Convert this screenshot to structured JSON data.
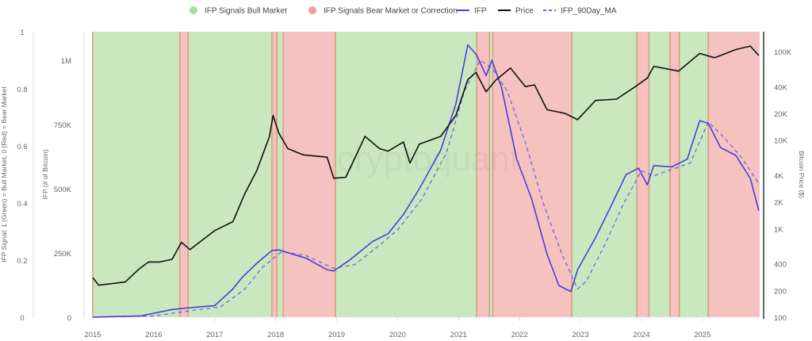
{
  "chart_data": {
    "type": "line",
    "legend": {
      "placement": "top",
      "items": [
        {
          "label": "IFP Signals Bull Market",
          "kind": "dot",
          "color": "#a8dca0"
        },
        {
          "label": "IFP Signals Bear Market or Correction",
          "kind": "dot",
          "color": "#f0a0a0"
        },
        {
          "label": "IFP",
          "kind": "line",
          "color": "#4a3fd8"
        },
        {
          "label": "Price",
          "kind": "line",
          "color": "#111111"
        },
        {
          "label": "IFP_90Day_MA",
          "kind": "dash",
          "color": "#6a6ad8"
        }
      ]
    },
    "watermark": "cryptoquant",
    "x_axis": {
      "type": "date",
      "range": [
        "2015-01-01",
        "2025-12-10"
      ],
      "ticks": [
        "2015",
        "2016",
        "2017",
        "2018",
        "2019",
        "2020",
        "2021",
        "2022",
        "2023",
        "2024",
        "2025"
      ]
    },
    "signal_axis": {
      "label": "IFP Signal: 1 (Green) = Bull Market, 0 (Red) = Bear Market",
      "range": [
        0,
        1
      ],
      "ticks": [
        "0",
        "0.2",
        "0.4",
        "0.6",
        "0.8",
        "1"
      ]
    },
    "ifp_axis": {
      "label": "IFP (# of Bitcoin)",
      "range": [
        0,
        1100000
      ],
      "ticks": [
        {
          "v": 0,
          "t": "0"
        },
        {
          "v": 250000,
          "t": "250K"
        },
        {
          "v": 500000,
          "t": "500K"
        },
        {
          "v": 750000,
          "t": "750K"
        },
        {
          "v": 1000000,
          "t": "1M"
        }
      ]
    },
    "price_axis": {
      "label": "Bitcoin Price ($)",
      "scale": "log",
      "range": [
        100,
        200000
      ],
      "ticks": [
        {
          "v": 100,
          "t": "100"
        },
        {
          "v": 200,
          "t": "200"
        },
        {
          "v": 400,
          "t": "400"
        },
        {
          "v": 1000,
          "t": "1K"
        },
        {
          "v": 2000,
          "t": "2K"
        },
        {
          "v": 4000,
          "t": "4K"
        },
        {
          "v": 10000,
          "t": "10K"
        },
        {
          "v": 20000,
          "t": "20K"
        },
        {
          "v": 40000,
          "t": "40K"
        },
        {
          "v": 100000,
          "t": "100K"
        }
      ]
    },
    "colors": {
      "bull": "#c9e8c0",
      "bear": "#f5c2bf",
      "band_edge": "#d8a080"
    },
    "signal_periods": [
      {
        "start": "2015-01-01",
        "end": "2016-06-05",
        "signal": 1
      },
      {
        "start": "2016-06-05",
        "end": "2016-07-25",
        "signal": 0
      },
      {
        "start": "2016-07-25",
        "end": "2017-12-10",
        "signal": 1
      },
      {
        "start": "2017-12-10",
        "end": "2018-01-08",
        "signal": 0
      },
      {
        "start": "2018-01-08",
        "end": "2018-02-15",
        "signal": 1
      },
      {
        "start": "2018-02-15",
        "end": "2018-12-25",
        "signal": 0
      },
      {
        "start": "2018-12-25",
        "end": "2021-04-20",
        "signal": 1
      },
      {
        "start": "2021-04-20",
        "end": "2021-07-05",
        "signal": 0
      },
      {
        "start": "2021-07-05",
        "end": "2021-07-25",
        "signal": 1
      },
      {
        "start": "2021-07-25",
        "end": "2022-11-10",
        "signal": 0
      },
      {
        "start": "2022-11-10",
        "end": "2023-12-05",
        "signal": 1
      },
      {
        "start": "2023-12-05",
        "end": "2024-02-15",
        "signal": 0
      },
      {
        "start": "2024-02-15",
        "end": "2024-06-20",
        "signal": 1
      },
      {
        "start": "2024-06-20",
        "end": "2024-08-15",
        "signal": 0
      },
      {
        "start": "2024-08-15",
        "end": "2025-02-05",
        "signal": 1
      },
      {
        "start": "2025-02-05",
        "end": "2025-12-10",
        "signal": 0
      }
    ],
    "series": [
      {
        "name": "Price",
        "axis": "price",
        "points": [
          [
            "2015-01-01",
            280
          ],
          [
            "2015-02-05",
            230
          ],
          [
            "2015-07-15",
            250
          ],
          [
            "2015-10-01",
            345
          ],
          [
            "2015-12-01",
            420
          ],
          [
            "2016-02-05",
            420
          ],
          [
            "2016-04-20",
            450
          ],
          [
            "2016-06-15",
            700
          ],
          [
            "2016-08-05",
            580
          ],
          [
            "2017-01-01",
            950
          ],
          [
            "2017-04-20",
            1200
          ],
          [
            "2017-07-01",
            2500
          ],
          [
            "2017-09-10",
            4500
          ],
          [
            "2017-11-25",
            11000
          ],
          [
            "2017-12-17",
            19000
          ],
          [
            "2018-01-20",
            12000
          ],
          [
            "2018-03-15",
            8000
          ],
          [
            "2018-06-15",
            6800
          ],
          [
            "2018-11-05",
            6400
          ],
          [
            "2018-12-15",
            3700
          ],
          [
            "2019-02-25",
            3800
          ],
          [
            "2019-06-20",
            11000
          ],
          [
            "2019-09-15",
            8000
          ],
          [
            "2019-11-05",
            7500
          ],
          [
            "2020-02-05",
            9500
          ],
          [
            "2020-03-15",
            5500
          ],
          [
            "2020-05-10",
            9000
          ],
          [
            "2020-09-15",
            11000
          ],
          [
            "2020-12-15",
            19000
          ],
          [
            "2021-02-25",
            48000
          ],
          [
            "2021-04-15",
            58000
          ],
          [
            "2021-06-15",
            35000
          ],
          [
            "2021-08-10",
            47000
          ],
          [
            "2021-11-08",
            65000
          ],
          [
            "2022-02-05",
            40000
          ],
          [
            "2022-04-01",
            42000
          ],
          [
            "2022-06-15",
            22000
          ],
          [
            "2022-10-01",
            20000
          ],
          [
            "2022-12-15",
            17000
          ],
          [
            "2023-04-01",
            28000
          ],
          [
            "2023-08-05",
            29000
          ],
          [
            "2023-11-25",
            40000
          ],
          [
            "2024-02-05",
            50000
          ],
          [
            "2024-03-15",
            68000
          ],
          [
            "2024-08-10",
            60000
          ],
          [
            "2024-12-15",
            95000
          ],
          [
            "2025-03-15",
            85000
          ],
          [
            "2025-07-20",
            105000
          ],
          [
            "2025-10-15",
            115000
          ],
          [
            "2025-12-05",
            90000
          ]
        ]
      },
      {
        "name": "IFP",
        "axis": "ifp",
        "points": [
          [
            "2015-01-01",
            0
          ],
          [
            "2015-10-15",
            5000
          ],
          [
            "2016-04-20",
            30000
          ],
          [
            "2016-08-05",
            37000
          ],
          [
            "2017-01-01",
            45000
          ],
          [
            "2017-04-20",
            110000
          ],
          [
            "2017-06-15",
            155000
          ],
          [
            "2017-09-10",
            210000
          ],
          [
            "2017-12-10",
            260000
          ],
          [
            "2018-01-20",
            262000
          ],
          [
            "2018-07-01",
            230000
          ],
          [
            "2018-11-05",
            185000
          ],
          [
            "2018-12-15",
            180000
          ],
          [
            "2019-03-15",
            220000
          ],
          [
            "2019-08-05",
            295000
          ],
          [
            "2019-11-05",
            325000
          ],
          [
            "2020-02-05",
            400000
          ],
          [
            "2020-05-10",
            500000
          ],
          [
            "2020-09-15",
            650000
          ],
          [
            "2020-12-15",
            830000
          ],
          [
            "2021-02-25",
            1060000
          ],
          [
            "2021-04-20",
            1020000
          ],
          [
            "2021-06-15",
            940000
          ],
          [
            "2021-07-20",
            1000000
          ],
          [
            "2021-09-15",
            895000
          ],
          [
            "2021-12-15",
            617000
          ],
          [
            "2022-03-15",
            460000
          ],
          [
            "2022-06-15",
            245000
          ],
          [
            "2022-08-25",
            123000
          ],
          [
            "2022-11-05",
            100000
          ],
          [
            "2022-12-15",
            185000
          ],
          [
            "2023-04-01",
            310000
          ],
          [
            "2023-07-01",
            430000
          ],
          [
            "2023-10-01",
            555000
          ],
          [
            "2023-12-15",
            580000
          ],
          [
            "2024-02-05",
            515000
          ],
          [
            "2024-03-15",
            590000
          ],
          [
            "2024-07-01",
            585000
          ],
          [
            "2024-10-01",
            615000
          ],
          [
            "2024-12-15",
            765000
          ],
          [
            "2025-02-05",
            755000
          ],
          [
            "2025-04-20",
            660000
          ],
          [
            "2025-07-20",
            630000
          ],
          [
            "2025-10-15",
            540000
          ],
          [
            "2025-12-05",
            415000
          ]
        ]
      },
      {
        "name": "IFP_90Day_MA",
        "axis": "ifp",
        "points": [
          [
            "2015-01-01",
            0
          ],
          [
            "2016-01-01",
            5000
          ],
          [
            "2016-08-05",
            25000
          ],
          [
            "2017-02-05",
            40000
          ],
          [
            "2017-07-01",
            110000
          ],
          [
            "2017-10-15",
            195000
          ],
          [
            "2018-02-05",
            255000
          ],
          [
            "2018-07-01",
            240000
          ],
          [
            "2018-12-15",
            190000
          ],
          [
            "2019-04-20",
            205000
          ],
          [
            "2019-09-15",
            280000
          ],
          [
            "2020-01-01",
            340000
          ],
          [
            "2020-05-25",
            460000
          ],
          [
            "2020-10-20",
            640000
          ],
          [
            "2021-02-05",
            880000
          ],
          [
            "2021-05-10",
            1000000
          ],
          [
            "2021-07-20",
            970000
          ],
          [
            "2021-10-20",
            880000
          ],
          [
            "2022-02-05",
            680000
          ],
          [
            "2022-05-25",
            440000
          ],
          [
            "2022-09-15",
            240000
          ],
          [
            "2022-12-15",
            110000
          ],
          [
            "2023-02-05",
            140000
          ],
          [
            "2023-05-25",
            280000
          ],
          [
            "2023-09-15",
            440000
          ],
          [
            "2024-01-01",
            570000
          ],
          [
            "2024-03-15",
            550000
          ],
          [
            "2024-07-01",
            575000
          ],
          [
            "2024-10-20",
            600000
          ],
          [
            "2025-02-05",
            760000
          ],
          [
            "2025-05-10",
            700000
          ],
          [
            "2025-08-25",
            620000
          ],
          [
            "2025-12-05",
            520000
          ]
        ]
      }
    ]
  }
}
